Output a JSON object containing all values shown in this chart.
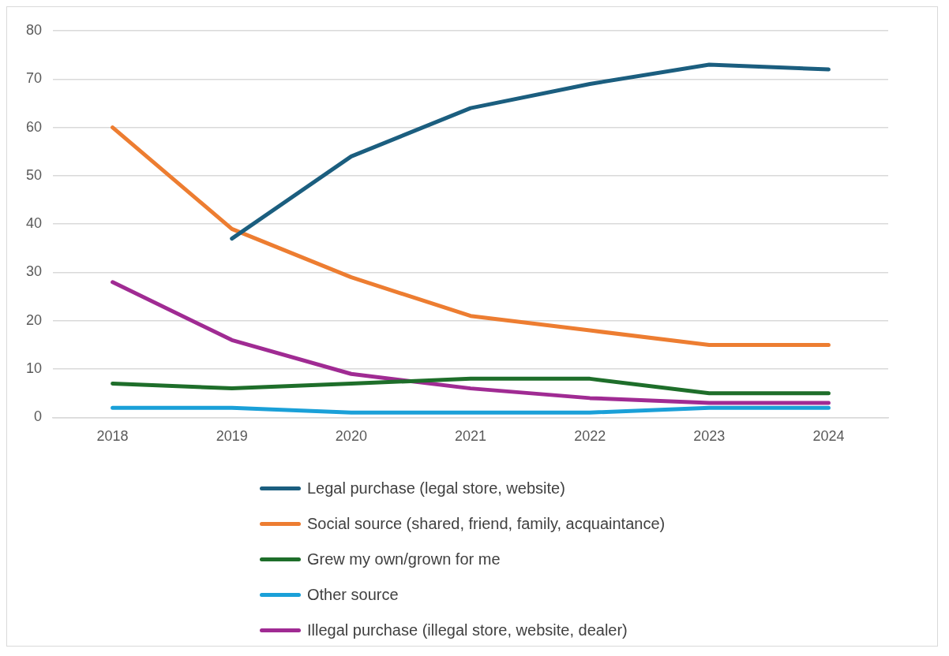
{
  "chart_data": {
    "type": "line",
    "categories": [
      "2018",
      "2019",
      "2020",
      "2021",
      "2022",
      "2023",
      "2024"
    ],
    "series": [
      {
        "name": "Legal purchase (legal store, website)",
        "color": "#1b5e7f",
        "values": [
          null,
          37,
          54,
          64,
          69,
          73,
          72
        ]
      },
      {
        "name": "Social source (shared, friend, family, acquaintance)",
        "color": "#ed7d31",
        "values": [
          60,
          39,
          29,
          21,
          18,
          15,
          15
        ]
      },
      {
        "name": "Grew my own/grown for me",
        "color": "#1e6e2a",
        "values": [
          7,
          6,
          7,
          8,
          8,
          5,
          5
        ]
      },
      {
        "name": "Other source",
        "color": "#1aa0d8",
        "values": [
          2,
          2,
          1,
          1,
          1,
          2,
          2
        ]
      },
      {
        "name": "Illegal purchase (illegal store, website, dealer)",
        "color": "#a02b93",
        "values": [
          28,
          16,
          9,
          6,
          4,
          3,
          3
        ]
      }
    ],
    "ylim": [
      0,
      80
    ],
    "yticks": [
      0,
      10,
      20,
      30,
      40,
      50,
      60,
      70,
      80
    ],
    "grid": "y",
    "legend": "bottom",
    "marker": "none",
    "line_style": "solid"
  }
}
